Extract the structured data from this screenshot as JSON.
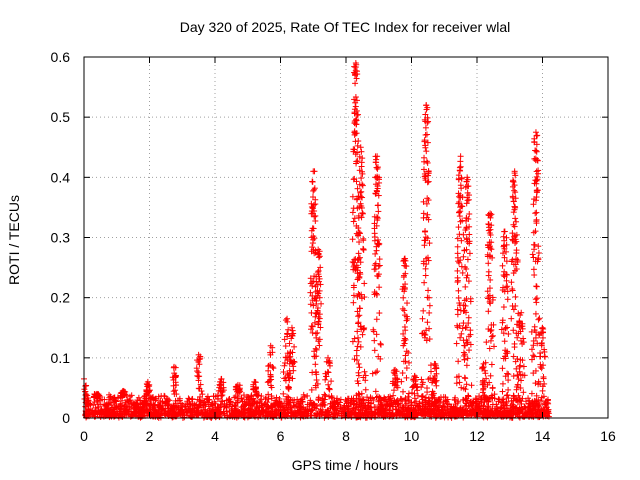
{
  "chart_data": {
    "type": "scatter",
    "title": "Day 320 of 2025, Rate Of TEC Index for receiver wlal",
    "xlabel": "GPS time / hours",
    "ylabel": "ROTI / TECUs",
    "xlim": [
      0,
      16
    ],
    "ylim": [
      0,
      0.6
    ],
    "xticks": [
      "0",
      "2",
      "4",
      "6",
      "8",
      "10",
      "12",
      "14",
      "16"
    ],
    "yticks": [
      "0",
      "0.1",
      "0.2",
      "0.3",
      "0.4",
      "0.5",
      "0.6"
    ],
    "grid": true,
    "marker": "+",
    "color": "#ff0000",
    "data_range": [
      0,
      14.2
    ],
    "baseline": {
      "min": 0.0,
      "max": 0.035
    },
    "clusters": [
      {
        "x": 0.0,
        "peak": 0.065
      },
      {
        "x": 0.4,
        "peak": 0.04
      },
      {
        "x": 1.2,
        "peak": 0.045
      },
      {
        "x": 1.95,
        "peak": 0.06
      },
      {
        "x": 2.75,
        "peak": 0.085
      },
      {
        "x": 3.5,
        "peak": 0.105
      },
      {
        "x": 4.2,
        "peak": 0.065
      },
      {
        "x": 4.7,
        "peak": 0.055
      },
      {
        "x": 5.2,
        "peak": 0.06
      },
      {
        "x": 5.7,
        "peak": 0.12
      },
      {
        "x": 6.2,
        "peak": 0.165
      },
      {
        "x": 6.35,
        "peak": 0.15
      },
      {
        "x": 7.0,
        "peak": 0.41
      },
      {
        "x": 7.15,
        "peak": 0.28
      },
      {
        "x": 7.45,
        "peak": 0.1
      },
      {
        "x": 8.3,
        "peak": 0.59
      },
      {
        "x": 8.45,
        "peak": 0.45
      },
      {
        "x": 8.95,
        "peak": 0.435
      },
      {
        "x": 9.5,
        "peak": 0.08
      },
      {
        "x": 9.8,
        "peak": 0.265
      },
      {
        "x": 10.1,
        "peak": 0.07
      },
      {
        "x": 10.45,
        "peak": 0.52
      },
      {
        "x": 10.7,
        "peak": 0.09
      },
      {
        "x": 11.5,
        "peak": 0.435
      },
      {
        "x": 11.7,
        "peak": 0.4
      },
      {
        "x": 12.2,
        "peak": 0.09
      },
      {
        "x": 12.4,
        "peak": 0.34
      },
      {
        "x": 12.85,
        "peak": 0.31
      },
      {
        "x": 13.15,
        "peak": 0.41
      },
      {
        "x": 13.35,
        "peak": 0.175
      },
      {
        "x": 13.8,
        "peak": 0.475
      },
      {
        "x": 14.0,
        "peak": 0.15
      }
    ]
  }
}
